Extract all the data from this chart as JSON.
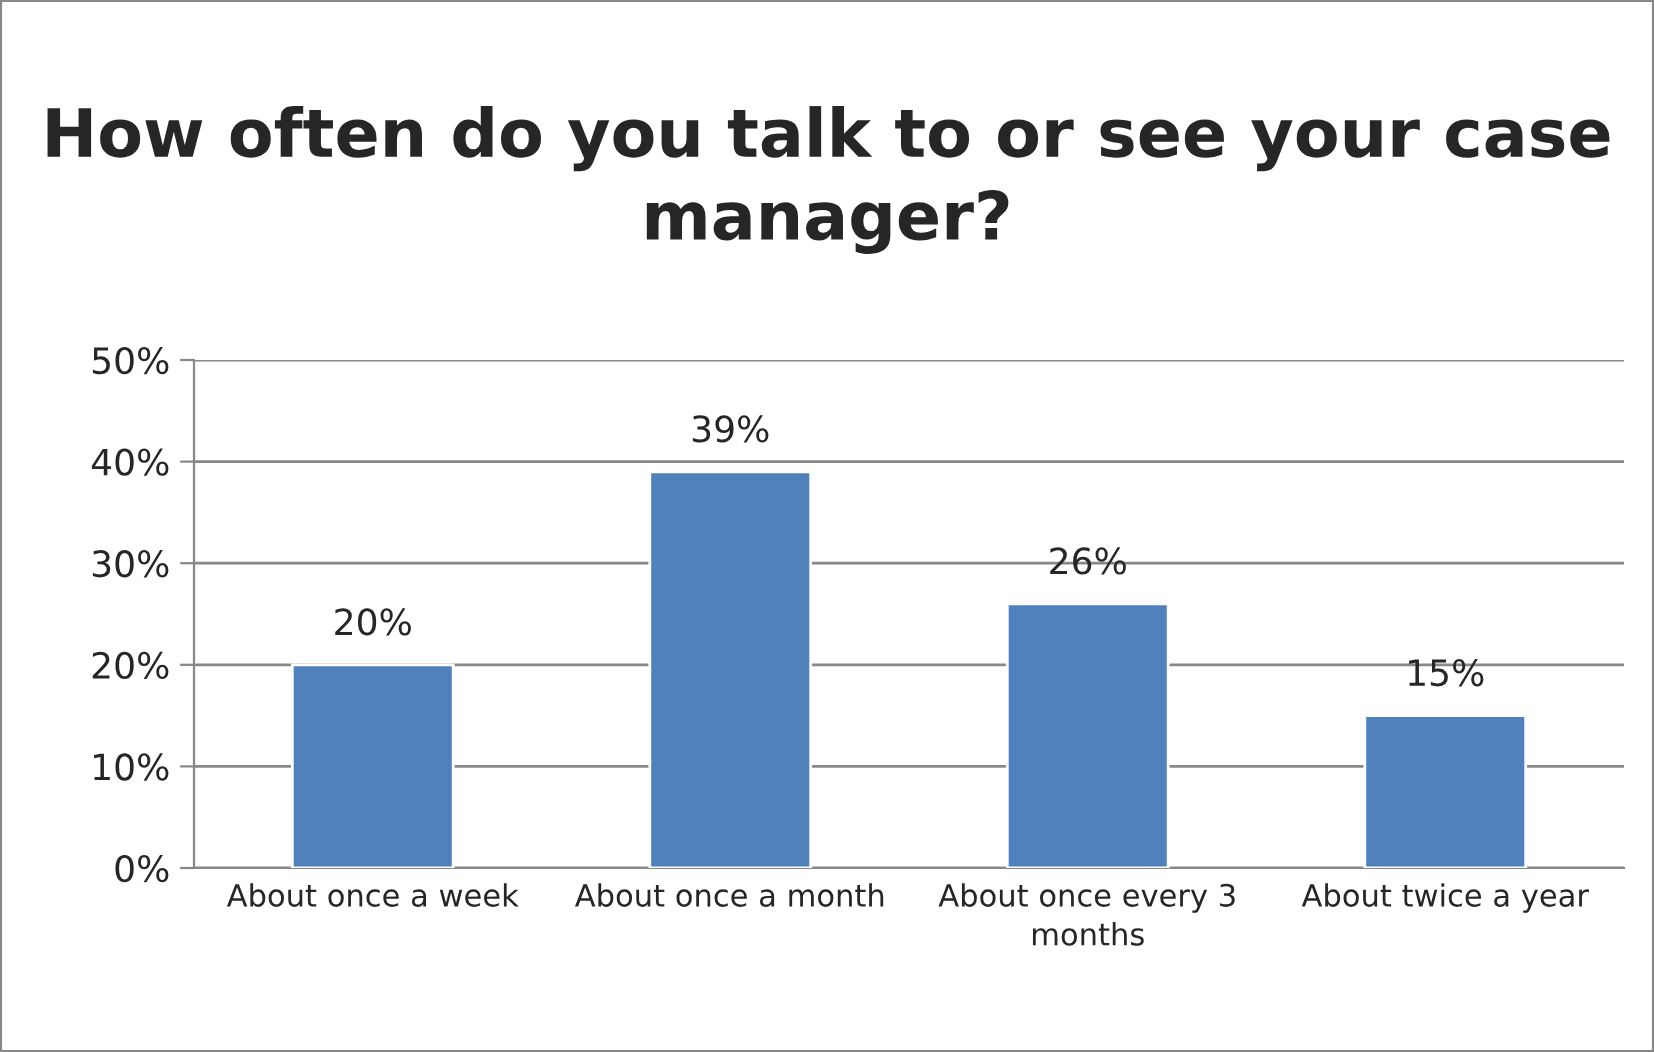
{
  "chart_data": {
    "type": "bar",
    "title": "How often do you talk to or see your case manager?",
    "categories": [
      "About once a week",
      "About once a month",
      "About once every 3 months",
      "About twice a year"
    ],
    "values": [
      20,
      39,
      26,
      15
    ],
    "value_labels": [
      "20%",
      "39%",
      "26%",
      "15%"
    ],
    "color": "#4f81bd",
    "ylim": [
      0,
      50
    ],
    "yticks": [
      {
        "value": 0,
        "label": "0%"
      },
      {
        "value": 10,
        "label": "10%"
      },
      {
        "value": 20,
        "label": "20%"
      },
      {
        "value": 30,
        "label": "30%"
      },
      {
        "value": 40,
        "label": "40%"
      },
      {
        "value": 50,
        "label": "50%"
      }
    ],
    "grid": "y",
    "legend": false
  }
}
